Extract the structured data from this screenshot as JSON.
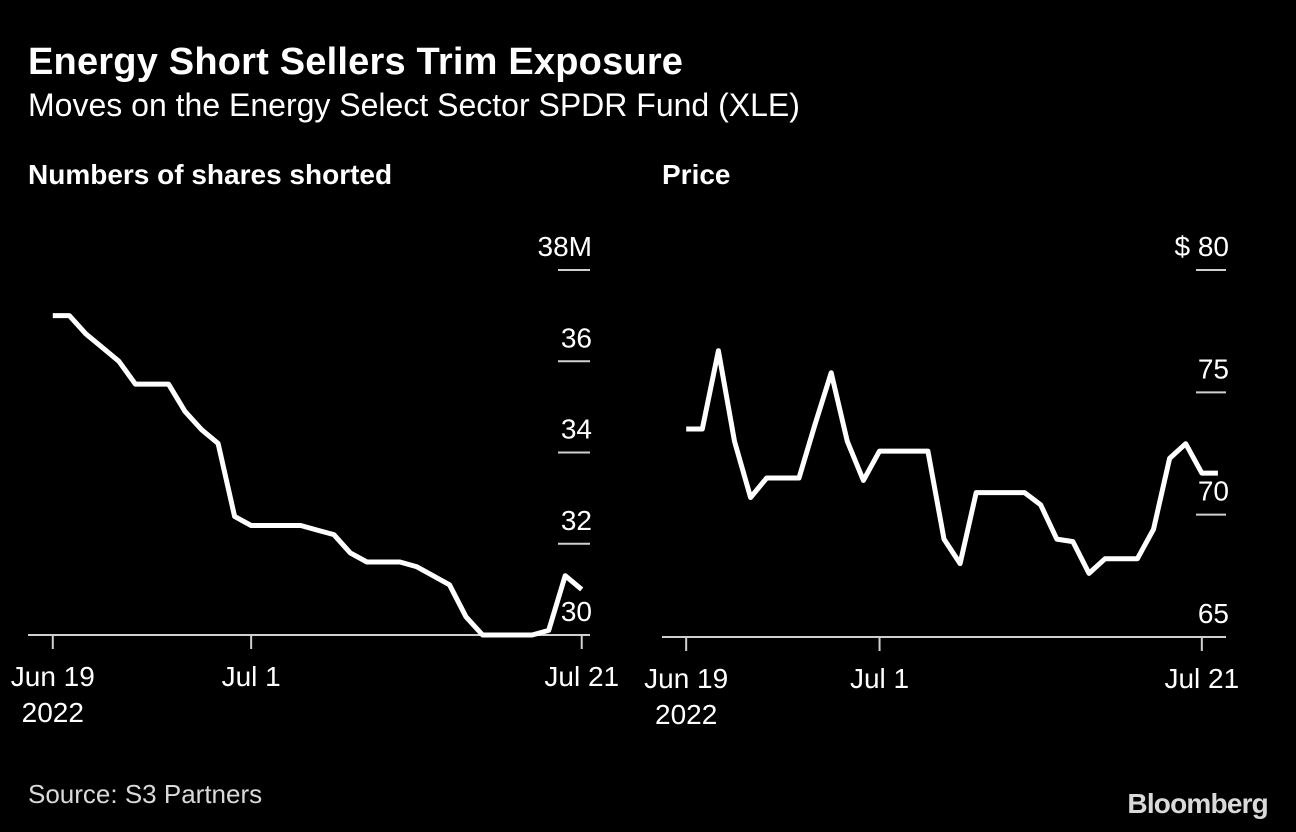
{
  "header": {
    "title": "Energy Short Sellers Trim Exposure",
    "subtitle": "Moves on the Energy Select Sector SPDR Fund (XLE)"
  },
  "footer": {
    "source": "Source: S3 Partners",
    "logo": "Bloomberg"
  },
  "colors": {
    "background": "#000000",
    "line": "#ffffff",
    "text": "#ffffff",
    "muted": "#d9d9d9"
  },
  "chart_data": [
    {
      "type": "line",
      "title": "Numbers of shares shorted",
      "xlabel": "",
      "ylabel": "",
      "units": "million shares",
      "ylim": [
        30,
        38
      ],
      "yticks": [
        {
          "value": 38,
          "label": "38M"
        },
        {
          "value": 36,
          "label": "36"
        },
        {
          "value": 34,
          "label": "34"
        },
        {
          "value": 32,
          "label": "32"
        },
        {
          "value": 30,
          "label": "30"
        }
      ],
      "xdomain": [
        -1.5,
        32.5
      ],
      "xticks": [
        {
          "x": 0,
          "label": "Jun 19",
          "sublabel": "2022"
        },
        {
          "x": 12,
          "label": "Jul 1",
          "sublabel": ""
        },
        {
          "x": 32,
          "label": "Jul 21",
          "sublabel": ""
        }
      ],
      "x": [
        0,
        1,
        2,
        3,
        4,
        5,
        6,
        7,
        8,
        9,
        10,
        11,
        12,
        13,
        14,
        15,
        16,
        17,
        18,
        19,
        20,
        21,
        22,
        23,
        24,
        25,
        26,
        27,
        28,
        29,
        30,
        31,
        32
      ],
      "values": [
        37.0,
        37.0,
        36.6,
        36.3,
        36.0,
        35.5,
        35.5,
        35.5,
        34.9,
        34.5,
        34.2,
        32.6,
        32.4,
        32.4,
        32.4,
        32.4,
        32.3,
        32.2,
        31.8,
        31.6,
        31.6,
        31.6,
        31.5,
        31.3,
        31.1,
        30.4,
        30.0,
        30.0,
        30.0,
        30.0,
        30.1,
        31.3,
        31.0
      ],
      "grid": false,
      "legend": "none"
    },
    {
      "type": "line",
      "title": "Price",
      "xlabel": "",
      "ylabel": "",
      "units": "USD",
      "ylim": [
        65,
        80
      ],
      "yticks": [
        {
          "value": 80,
          "label": "$ 80"
        },
        {
          "value": 75,
          "label": "75"
        },
        {
          "value": 70,
          "label": "70"
        },
        {
          "value": 65,
          "label": "65"
        }
      ],
      "xdomain": [
        -1.5,
        33.5
      ],
      "xticks": [
        {
          "x": 0,
          "label": "Jun 19",
          "sublabel": "2022"
        },
        {
          "x": 12,
          "label": "Jul 1",
          "sublabel": ""
        },
        {
          "x": 32,
          "label": "Jul 21",
          "sublabel": ""
        }
      ],
      "x": [
        0,
        1,
        2,
        3,
        4,
        5,
        7,
        8,
        9,
        10,
        11,
        12,
        13,
        14,
        15,
        16,
        17,
        18,
        19,
        20,
        21,
        22,
        23,
        24,
        25,
        26,
        27,
        28,
        29,
        30,
        31,
        32,
        33
      ],
      "values": [
        73.5,
        73.5,
        76.7,
        73.0,
        70.7,
        71.5,
        71.5,
        73.7,
        75.8,
        73.0,
        71.4,
        72.6,
        72.6,
        72.6,
        72.6,
        69.0,
        68.0,
        70.9,
        70.9,
        70.9,
        70.9,
        70.4,
        69.0,
        68.9,
        67.6,
        68.2,
        68.2,
        68.2,
        69.4,
        72.3,
        72.9,
        71.7,
        71.7
      ],
      "grid": false,
      "legend": "none"
    }
  ]
}
